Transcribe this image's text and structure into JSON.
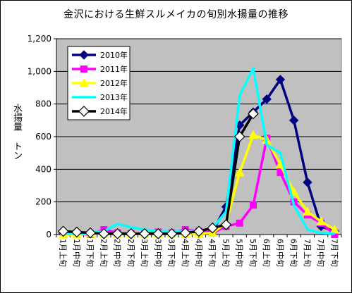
{
  "chart_data": {
    "type": "line",
    "title": "金沢における生鮮スルメイカの旬別水揚量の推移",
    "ylabel": "水揚量 トン",
    "xlabel": "",
    "ylim": [
      0,
      1200
    ],
    "yticks": [
      "0",
      "200",
      "400",
      "600",
      "800",
      "1,000",
      "1,200"
    ],
    "categories": [
      "1月上旬",
      "1月中旬",
      "1月下旬",
      "2月上旬",
      "2月中旬",
      "2月下旬",
      "3月上旬",
      "3月中旬",
      "3月下旬",
      "4月上旬",
      "4月中旬",
      "4月下旬",
      "5月上旬",
      "5月中旬",
      "5月下旬",
      "6月上旬",
      "6月中旬",
      "6月下旬",
      "7月上旬",
      "7月中旬",
      "7月下旬"
    ],
    "grid": true,
    "legend": "top-left",
    "series": [
      {
        "name": "2010年",
        "color": "#000080",
        "marker": "diamond",
        "values": [
          5,
          5,
          5,
          8,
          5,
          5,
          5,
          5,
          5,
          5,
          5,
          20,
          170,
          670,
          750,
          830,
          950,
          700,
          320,
          50,
          20
        ]
      },
      {
        "name": "2011年",
        "color": "#ff00ff",
        "marker": "square",
        "values": [
          0,
          2,
          0,
          30,
          10,
          5,
          5,
          15,
          10,
          30,
          20,
          10,
          50,
          70,
          180,
          590,
          380,
          200,
          120,
          70,
          0
        ]
      },
      {
        "name": "2012年",
        "color": "#ffff00",
        "marker": "triangle",
        "values": [
          0,
          0,
          5,
          5,
          5,
          5,
          5,
          5,
          5,
          5,
          5,
          10,
          70,
          380,
          610,
          580,
          430,
          260,
          140,
          80,
          30
        ]
      },
      {
        "name": "2013年",
        "color": "#00ffff",
        "marker": "none",
        "values": [
          5,
          5,
          10,
          20,
          65,
          45,
          30,
          20,
          20,
          20,
          20,
          40,
          140,
          850,
          1020,
          550,
          500,
          180,
          30,
          10,
          5
        ]
      },
      {
        "name": "2014年",
        "color": "#000000",
        "marker": "diamond-open",
        "values": [
          20,
          15,
          10,
          5,
          5,
          5,
          5,
          5,
          5,
          10,
          20,
          40,
          60,
          600,
          740,
          null,
          null,
          null,
          null,
          null,
          null
        ]
      }
    ]
  },
  "colors": {
    "plot_background": "#c0c0c0",
    "grid": "#000000"
  }
}
